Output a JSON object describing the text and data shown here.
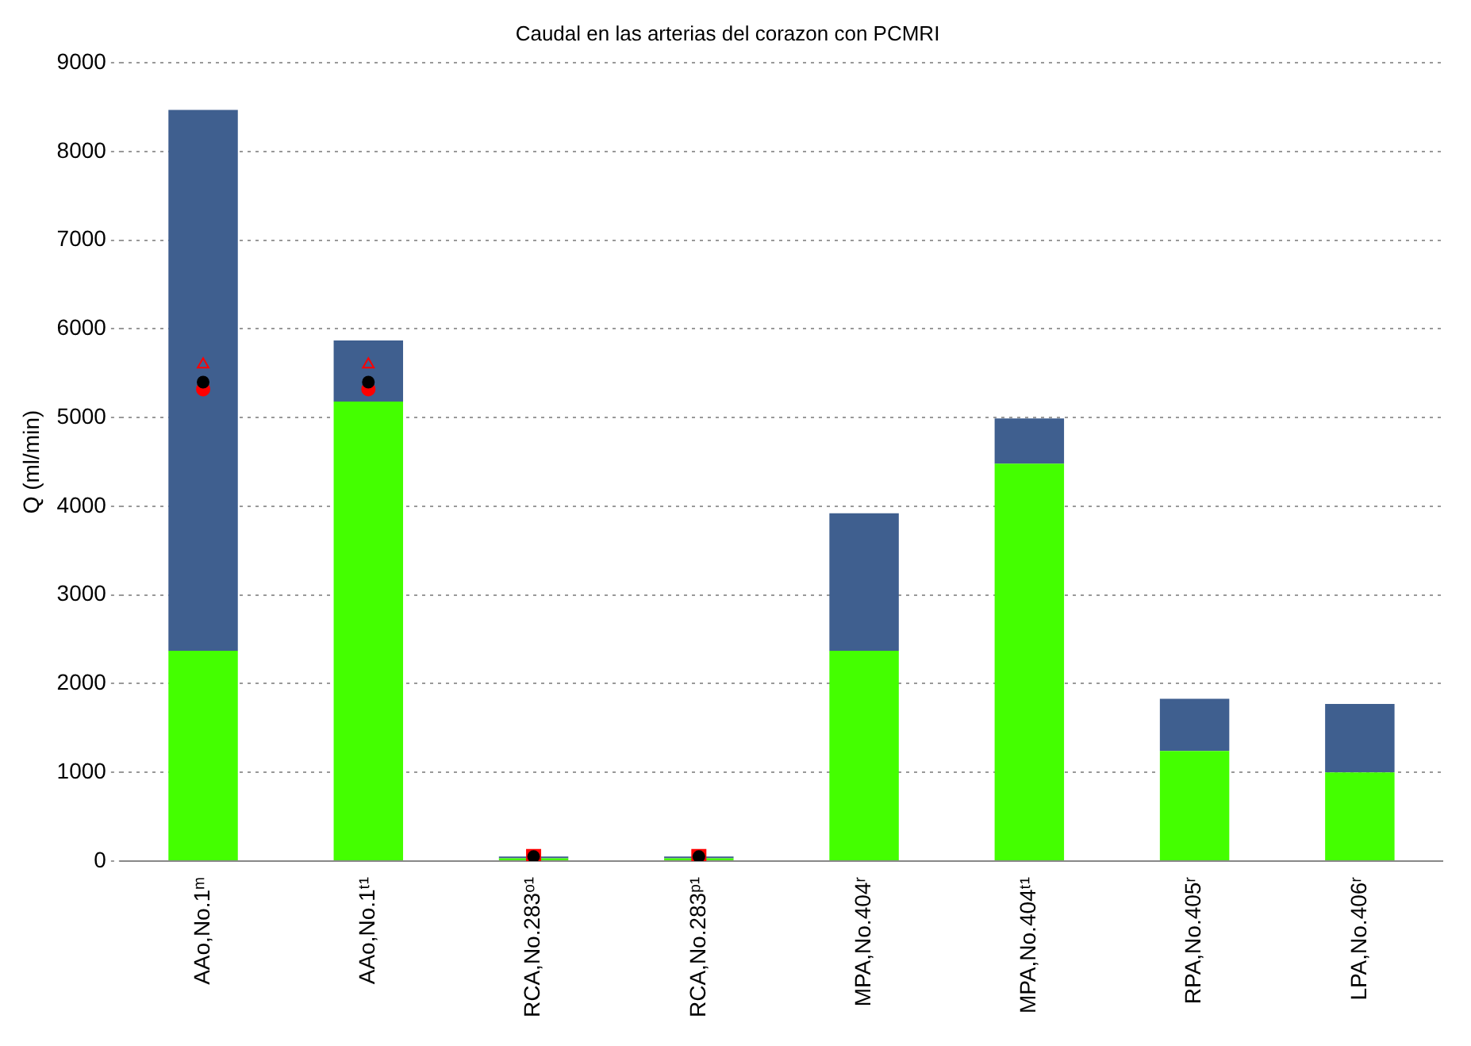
{
  "chart_data": {
    "type": "bar",
    "title": "Caudal en las arterias del corazon con PCMRI",
    "ylabel": "Q (ml/min)",
    "categories": [
      "AAo,No.1ᵐ",
      "AAo,No.1ᵗ¹",
      "RCA,No.283ᵒ¹",
      "RCA,No.283ᵖ¹",
      "MPA,No.404ʳ",
      "MPA,No.404ᵗ¹",
      "RPA,No.405ʳ",
      "LPA,No.406ʳ"
    ],
    "stacked": true,
    "ylim": [
      0,
      9000
    ],
    "yticks": [
      0,
      1000,
      2000,
      3000,
      4000,
      5000,
      6000,
      7000,
      8000,
      9000
    ],
    "grid": "y",
    "legend": false,
    "series": [
      {
        "color": "#44ff00",
        "values": [
          2370,
          5180,
          30,
          30,
          2370,
          4480,
          1240,
          1000
        ]
      },
      {
        "color": "#3f5f8f",
        "values": [
          6100,
          690,
          20,
          20,
          1550,
          510,
          590,
          770
        ]
      },
      {
        "type": "scatter",
        "color": "#ff0000",
        "marker": "triangle",
        "values": [
          5600,
          5600,
          null,
          null,
          null,
          null,
          null,
          null
        ]
      },
      {
        "type": "scatter",
        "color": "#ff0000",
        "marker": "circle",
        "values": [
          5320,
          5320,
          null,
          null,
          null,
          null,
          null,
          null
        ]
      },
      {
        "type": "scatter",
        "color": "#ff0000",
        "marker": "square",
        "values": [
          null,
          null,
          50,
          50,
          null,
          null,
          null,
          null
        ]
      },
      {
        "type": "scatter",
        "color": "#000000",
        "marker": "circle",
        "values": [
          5400,
          5400,
          50,
          50,
          null,
          null,
          null,
          null
        ]
      }
    ]
  }
}
